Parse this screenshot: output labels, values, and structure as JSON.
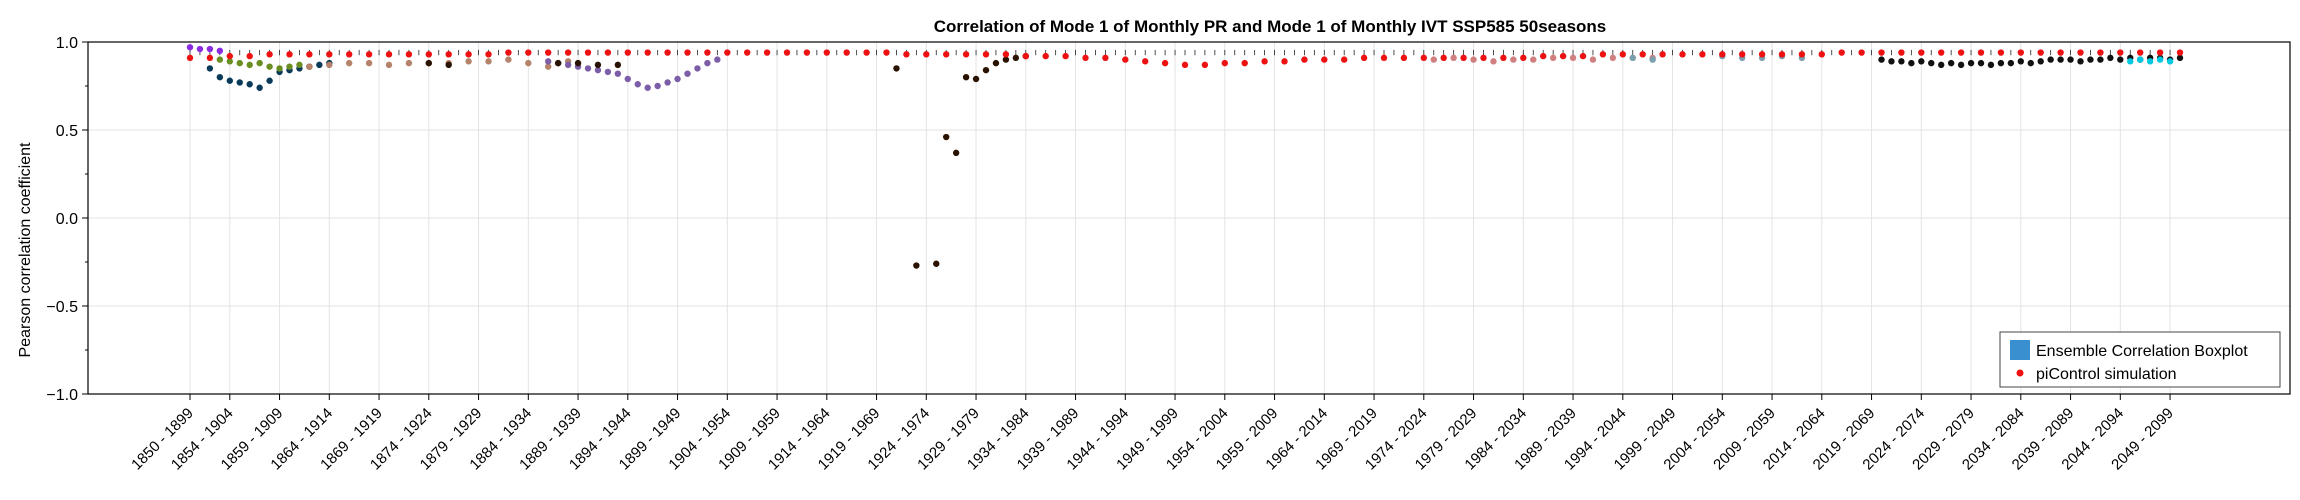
{
  "chart_data": {
    "type": "scatter",
    "title": "Correlation of Mode 1 of Monthly PR and Mode 1 of Monthly IVT SSP585 50seasons",
    "xlabel": "",
    "ylabel": "Pearson correlation coefficient",
    "ylim": [
      -1.0,
      1.0
    ],
    "yticks": [
      "1.0",
      "0.5",
      "0.0",
      "−0.5",
      "−1.0"
    ],
    "ytick_values": [
      1.0,
      0.5,
      0.0,
      -0.5,
      -1.0
    ],
    "grid": true,
    "legend_position": "bottom-right",
    "start_year_first": 1850,
    "start_year_last": 2050,
    "window_length_years": 50,
    "xtick_labels": [
      "1850 - 1899",
      "1854 - 1904",
      "1859 - 1909",
      "1864 - 1914",
      "1869 - 1919",
      "1874 - 1924",
      "1879 - 1929",
      "1884 - 1934",
      "1889 - 1939",
      "1894 - 1944",
      "1899 - 1949",
      "1904 - 1954",
      "1909 - 1959",
      "1914 - 1964",
      "1919 - 1969",
      "1924 - 1974",
      "1929 - 1979",
      "1934 - 1984",
      "1939 - 1989",
      "1944 - 1994",
      "1949 - 1999",
      "1954 - 2004",
      "1959 - 2009",
      "1964 - 2014",
      "1969 - 2019",
      "1974 - 2024",
      "1979 - 2029",
      "1984 - 2034",
      "1989 - 2039",
      "1994 - 2044",
      "1999 - 2049",
      "2004 - 2054",
      "2009 - 2059",
      "2014 - 2064",
      "2019 - 2069",
      "2024 - 2074",
      "2029 - 2079",
      "2034 - 2084",
      "2039 - 2089",
      "2044 - 2094",
      "2049 - 2099"
    ],
    "xtick_window_starts": [
      1850,
      1854,
      1859,
      1864,
      1869,
      1874,
      1879,
      1884,
      1889,
      1894,
      1899,
      1904,
      1909,
      1914,
      1919,
      1924,
      1929,
      1934,
      1939,
      1944,
      1949,
      1954,
      1959,
      1964,
      1969,
      1974,
      1979,
      1984,
      1989,
      1994,
      1999,
      2004,
      2009,
      2014,
      2019,
      2024,
      2029,
      2034,
      2039,
      2044,
      2049
    ],
    "legend": [
      {
        "label": "Ensemble Correlation Boxplot",
        "color": "#3a8fd0",
        "marker": "square"
      },
      {
        "label": "piControl simulation",
        "color": "#ee1111",
        "marker": "dot"
      }
    ],
    "series": [
      {
        "name": "piControl simulation",
        "color": "#ee1111",
        "x": [
          1850,
          1852,
          1854,
          1856,
          1858,
          1860,
          1862,
          1864,
          1866,
          1868,
          1870,
          1872,
          1874,
          1876,
          1878,
          1880,
          1882,
          1884,
          1886,
          1888,
          1890,
          1892,
          1894,
          1896,
          1898,
          1900,
          1902,
          1904,
          1906,
          1908,
          1910,
          1912,
          1914,
          1916,
          1918,
          1920,
          1922,
          1924,
          1926,
          1928,
          1930,
          1932,
          1934,
          1936,
          1938,
          1940,
          1942,
          1944,
          1946,
          1948,
          1950,
          1952,
          1954,
          1956,
          1958,
          1960,
          1962,
          1964,
          1966,
          1968,
          1970,
          1972,
          1974,
          1976,
          1978,
          1980,
          1982,
          1984,
          1986,
          1988,
          1990,
          1992,
          1994,
          1996,
          1998,
          2000,
          2002,
          2004,
          2006,
          2008,
          2010,
          2012,
          2014,
          2016,
          2018,
          2020,
          2022,
          2024,
          2026,
          2028,
          2030,
          2032,
          2034,
          2036,
          2038,
          2040,
          2042,
          2044,
          2046,
          2048,
          2050
        ],
        "y": [
          0.91,
          0.91,
          0.92,
          0.92,
          0.93,
          0.93,
          0.93,
          0.93,
          0.93,
          0.93,
          0.93,
          0.93,
          0.93,
          0.93,
          0.93,
          0.93,
          0.94,
          0.94,
          0.94,
          0.94,
          0.94,
          0.94,
          0.94,
          0.94,
          0.94,
          0.94,
          0.94,
          0.94,
          0.94,
          0.94,
          0.94,
          0.94,
          0.94,
          0.94,
          0.94,
          0.94,
          0.93,
          0.93,
          0.93,
          0.93,
          0.93,
          0.93,
          0.92,
          0.92,
          0.92,
          0.91,
          0.91,
          0.9,
          0.89,
          0.88,
          0.87,
          0.87,
          0.88,
          0.88,
          0.89,
          0.89,
          0.9,
          0.9,
          0.9,
          0.91,
          0.91,
          0.91,
          0.91,
          0.91,
          0.91,
          0.91,
          0.91,
          0.91,
          0.92,
          0.92,
          0.92,
          0.93,
          0.93,
          0.93,
          0.93,
          0.93,
          0.93,
          0.93,
          0.93,
          0.93,
          0.93,
          0.93,
          0.93,
          0.94,
          0.94,
          0.94,
          0.94,
          0.94,
          0.94,
          0.94,
          0.94,
          0.94,
          0.94,
          0.94,
          0.94,
          0.94,
          0.94,
          0.94,
          0.94,
          0.94,
          0.94
        ]
      },
      {
        "name": "",
        "color": "#8a2be2",
        "x": [
          1850,
          1851,
          1852,
          1853
        ],
        "y": [
          0.97,
          0.96,
          0.96,
          0.95
        ]
      },
      {
        "name": "",
        "color": "#0a3a5a",
        "x": [
          1852,
          1853,
          1854,
          1855,
          1856,
          1857,
          1858,
          1859,
          1860,
          1861,
          1862,
          1863,
          1864
        ],
        "y": [
          0.85,
          0.8,
          0.78,
          0.77,
          0.76,
          0.74,
          0.78,
          0.83,
          0.84,
          0.85,
          0.86,
          0.87,
          0.88
        ]
      },
      {
        "name": "",
        "color": "#6b8e23",
        "x": [
          1853,
          1854,
          1855,
          1856,
          1857,
          1858,
          1859,
          1860,
          1861,
          1862
        ],
        "y": [
          0.9,
          0.89,
          0.88,
          0.87,
          0.88,
          0.86,
          0.85,
          0.86,
          0.87,
          0.86
        ]
      },
      {
        "name": "",
        "color": "#b5836b",
        "x": [
          1862,
          1864,
          1866,
          1868,
          1870,
          1872,
          1874,
          1876,
          1878,
          1880,
          1882,
          1884,
          1886,
          1888
        ],
        "y": [
          0.86,
          0.87,
          0.88,
          0.88,
          0.87,
          0.88,
          0.88,
          0.88,
          0.89,
          0.89,
          0.9,
          0.88,
          0.86,
          0.89
        ]
      },
      {
        "name": "",
        "color": "#7b5ea7",
        "x": [
          1886,
          1887,
          1888,
          1889,
          1890,
          1891,
          1892,
          1893,
          1894,
          1895,
          1896,
          1897,
          1898,
          1899,
          1900,
          1901,
          1902,
          1903
        ],
        "y": [
          0.89,
          0.88,
          0.87,
          0.86,
          0.85,
          0.84,
          0.83,
          0.82,
          0.79,
          0.76,
          0.74,
          0.75,
          0.77,
          0.79,
          0.82,
          0.85,
          0.88,
          0.9
        ]
      },
      {
        "name": "",
        "color": "#2a1200",
        "x": [
          1874,
          1876,
          1887,
          1889,
          1891,
          1893,
          1921,
          1923,
          1925,
          1926,
          1927,
          1928,
          1929,
          1930,
          1931,
          1932,
          1933,
          1934
        ],
        "y": [
          0.88,
          0.87,
          0.88,
          0.88,
          0.87,
          0.87,
          0.85,
          -0.27,
          -0.26,
          0.46,
          0.37,
          0.8,
          0.79,
          0.84,
          0.88,
          0.9,
          0.91,
          0.92
        ]
      },
      {
        "name": "",
        "color": "#111111",
        "x": [
          2020,
          2021,
          2022,
          2023,
          2024,
          2025,
          2026,
          2027,
          2028,
          2029,
          2030,
          2031,
          2032,
          2033,
          2034,
          2035,
          2036,
          2037,
          2038,
          2039,
          2040,
          2041,
          2042,
          2043,
          2044,
          2045,
          2046,
          2047,
          2048,
          2049,
          2050
        ],
        "y": [
          0.9,
          0.89,
          0.89,
          0.88,
          0.89,
          0.88,
          0.87,
          0.88,
          0.87,
          0.88,
          0.88,
          0.87,
          0.88,
          0.88,
          0.89,
          0.88,
          0.89,
          0.9,
          0.9,
          0.9,
          0.89,
          0.9,
          0.9,
          0.91,
          0.9,
          0.91,
          0.9,
          0.91,
          0.91,
          0.9,
          0.91
        ]
      },
      {
        "name": "",
        "color": "#00c8e0",
        "x": [
          2045,
          2046,
          2047,
          2048,
          2049
        ],
        "y": [
          0.89,
          0.9,
          0.89,
          0.9,
          0.89
        ]
      },
      {
        "name": "",
        "color": "#d08080",
        "x": [
          1975,
          1977,
          1979,
          1981,
          1983,
          1985,
          1987,
          1989,
          1991,
          1993,
          1995,
          1997
        ],
        "y": [
          0.9,
          0.91,
          0.9,
          0.89,
          0.9,
          0.9,
          0.91,
          0.91,
          0.9,
          0.91,
          0.91,
          0.91
        ]
      },
      {
        "name": "",
        "color": "#7aa0b0",
        "x": [
          1995,
          1997,
          2004,
          2006,
          2008,
          2010,
          2012
        ],
        "y": [
          0.91,
          0.9,
          0.92,
          0.91,
          0.91,
          0.92,
          0.91
        ]
      }
    ]
  }
}
